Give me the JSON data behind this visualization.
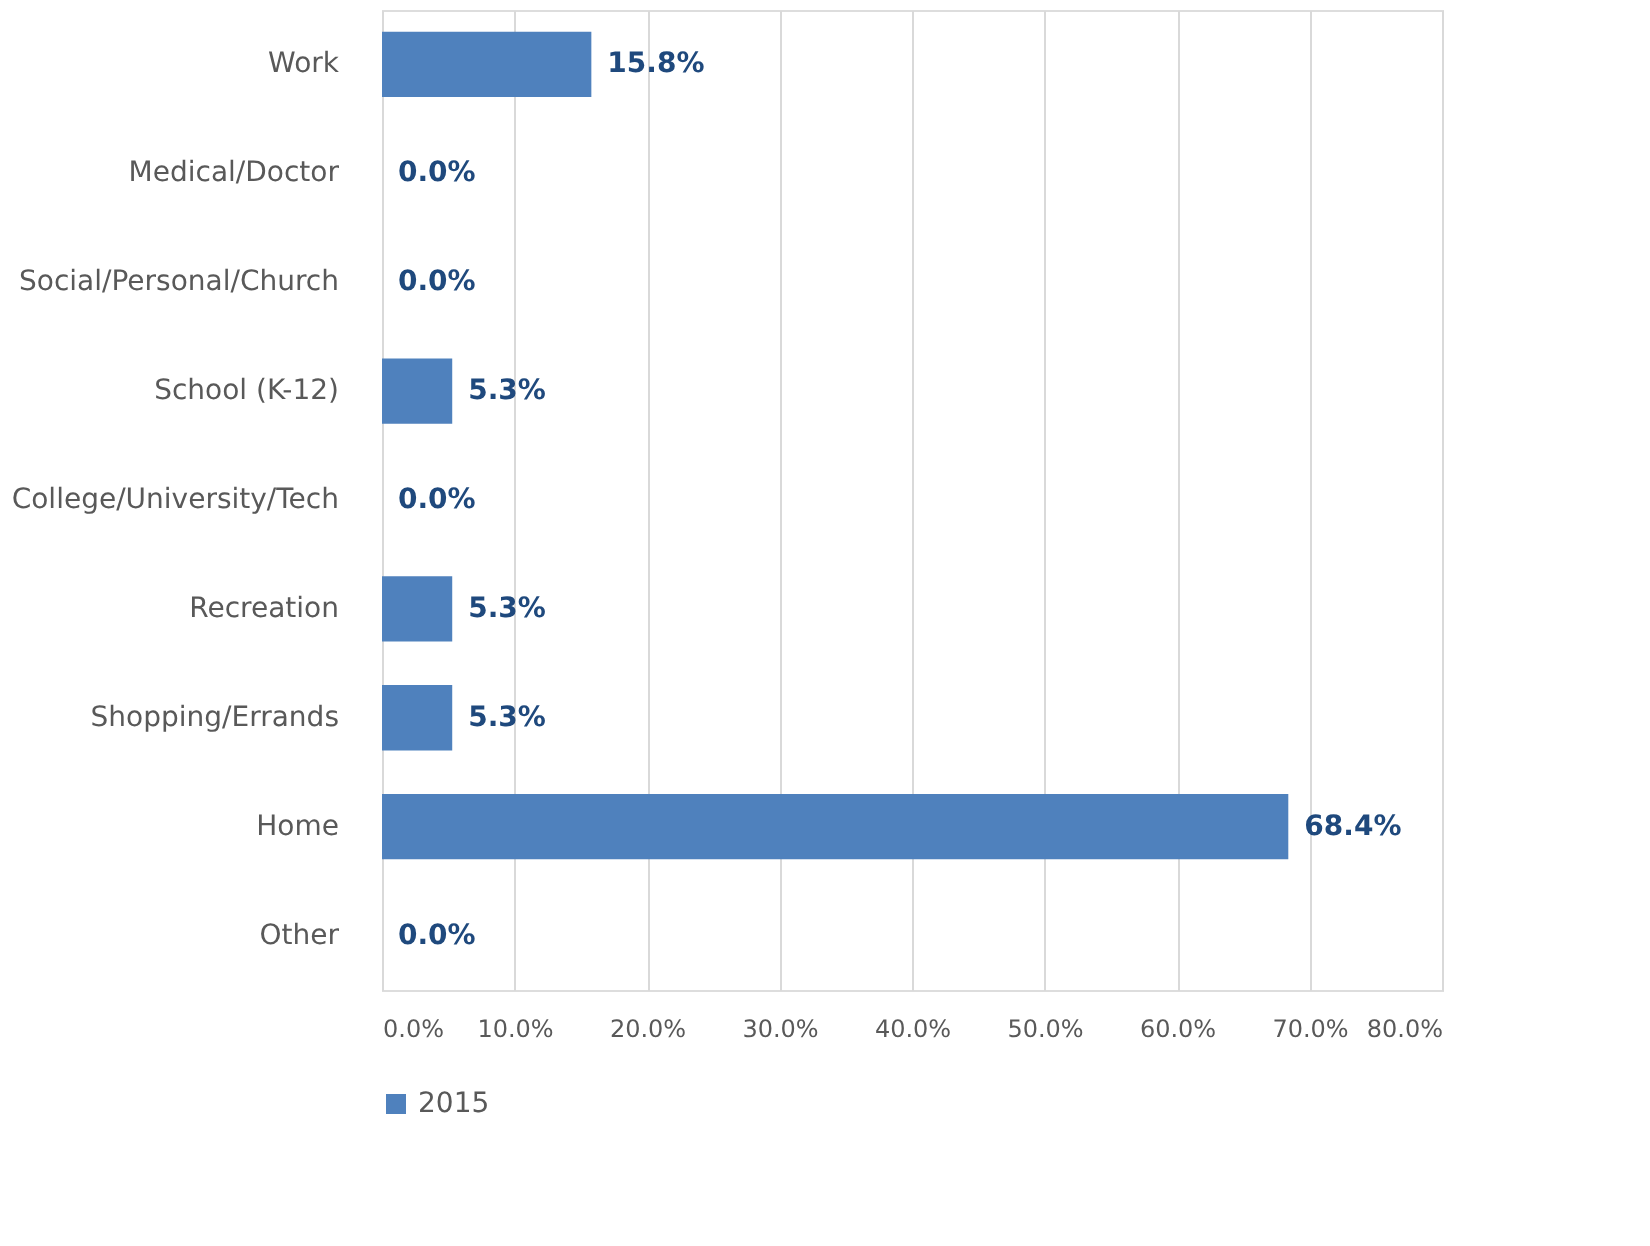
{
  "chart_data": {
    "type": "bar",
    "orientation": "horizontal",
    "categories": [
      "Work",
      "Medical/Doctor",
      "Social/Personal/Church",
      "School (K-12)",
      "College/University/Tech",
      "Recreation",
      "Shopping/Errands",
      "Home",
      "Other"
    ],
    "series": [
      {
        "name": "2015",
        "color": "#4f81bd",
        "values": [
          15.8,
          0.0,
          0.0,
          5.3,
          0.0,
          5.3,
          5.3,
          68.4,
          0.0
        ],
        "value_labels": [
          "15.8%",
          "0.0%",
          "0.0%",
          "5.3%",
          "0.0%",
          "5.3%",
          "5.3%",
          "68.4%",
          "0.0%"
        ]
      }
    ],
    "xlim": [
      0,
      80
    ],
    "xticks": [
      {
        "value": 0,
        "label": "0.0%"
      },
      {
        "value": 10,
        "label": "10.0%"
      },
      {
        "value": 20,
        "label": "20.0%"
      },
      {
        "value": 30,
        "label": "30.0%"
      },
      {
        "value": 40,
        "label": "40.0%"
      },
      {
        "value": 50,
        "label": "50.0%"
      },
      {
        "value": 60,
        "label": "60.0%"
      },
      {
        "value": 70,
        "label": "70.0%"
      },
      {
        "value": 80,
        "label": "80.0%"
      }
    ],
    "grid": "x",
    "legend": "bottom"
  }
}
